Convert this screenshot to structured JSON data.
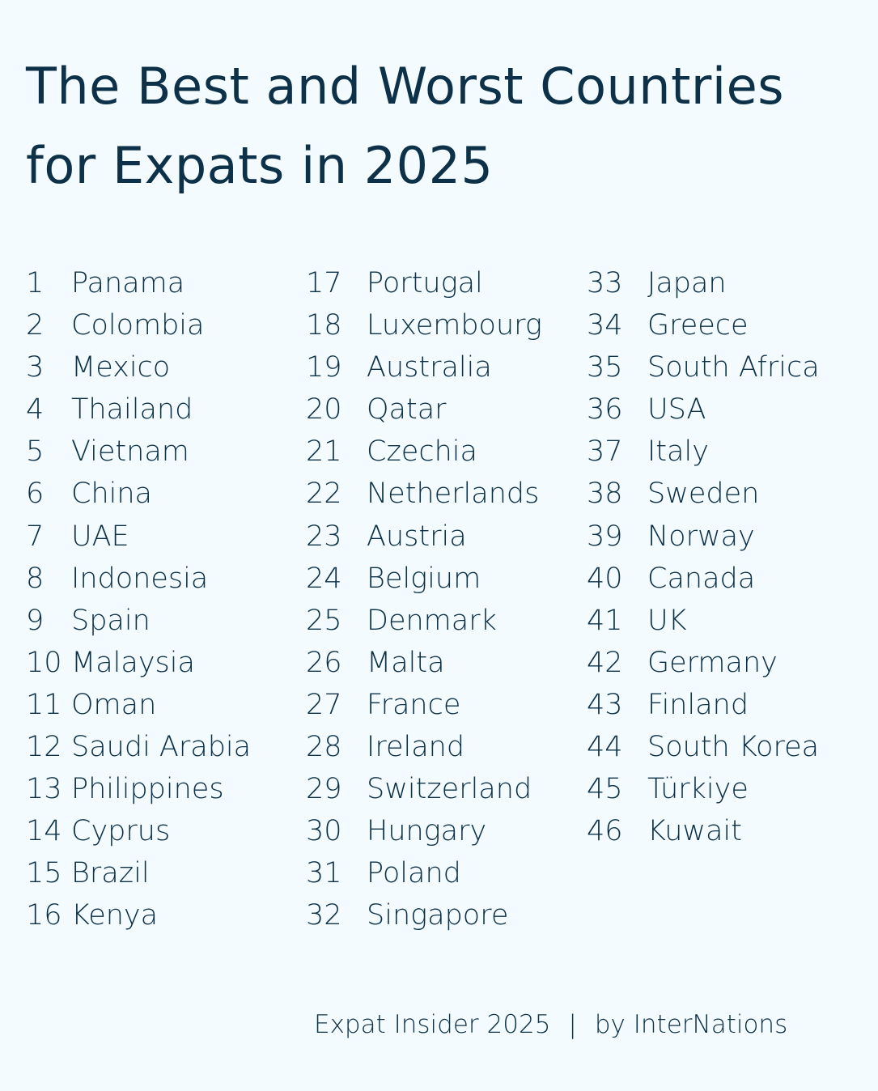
{
  "title": "The Best and Worst Countries for Expats in 2025",
  "colors": {
    "background": "#f3fbfe",
    "text": "#0d3148"
  },
  "columns": [
    [
      [
        "1",
        "Panama"
      ],
      [
        "2",
        "Colombia"
      ],
      [
        "3",
        "Mexico"
      ],
      [
        "4",
        "Thailand"
      ],
      [
        "5",
        "Vietnam"
      ],
      [
        "6",
        "China"
      ],
      [
        "7",
        "UAE"
      ],
      [
        "8",
        "Indonesia"
      ],
      [
        "9",
        "Spain"
      ],
      [
        "10",
        "Malaysia"
      ],
      [
        "11",
        "Oman"
      ],
      [
        "12",
        "Saudi Arabia"
      ],
      [
        "13",
        "Philippines"
      ],
      [
        "14",
        "Cyprus"
      ],
      [
        "15",
        "Brazil"
      ],
      [
        "16",
        "Kenya"
      ]
    ],
    [
      [
        "17",
        "Portugal"
      ],
      [
        "18",
        "Luxembourg"
      ],
      [
        "19",
        "Australia"
      ],
      [
        "20",
        "Qatar"
      ],
      [
        "21",
        "Czechia"
      ],
      [
        "22",
        "Netherlands"
      ],
      [
        "23",
        "Austria"
      ],
      [
        "24",
        "Belgium"
      ],
      [
        "25",
        "Denmark"
      ],
      [
        "26",
        "Malta"
      ],
      [
        "27",
        "France"
      ],
      [
        "28",
        "Ireland"
      ],
      [
        "29",
        "Switzerland"
      ],
      [
        "30",
        "Hungary"
      ],
      [
        "31",
        "Poland"
      ],
      [
        "32",
        "Singapore"
      ]
    ],
    [
      [
        "33",
        "Japan"
      ],
      [
        "34",
        "Greece"
      ],
      [
        "35",
        "South Africa"
      ],
      [
        "36",
        "USA"
      ],
      [
        "37",
        "Italy"
      ],
      [
        "38",
        "Sweden"
      ],
      [
        "39",
        "Norway"
      ],
      [
        "40",
        "Canada"
      ],
      [
        "41",
        "UK"
      ],
      [
        "42",
        "Germany"
      ],
      [
        "43",
        "Finland"
      ],
      [
        "44",
        "South Korea"
      ],
      [
        "45",
        "Türkiye"
      ],
      [
        "46",
        "Kuwait"
      ]
    ]
  ],
  "footer": {
    "source": "Expat Insider 2025",
    "separator": "|",
    "credit": "by InterNations"
  }
}
